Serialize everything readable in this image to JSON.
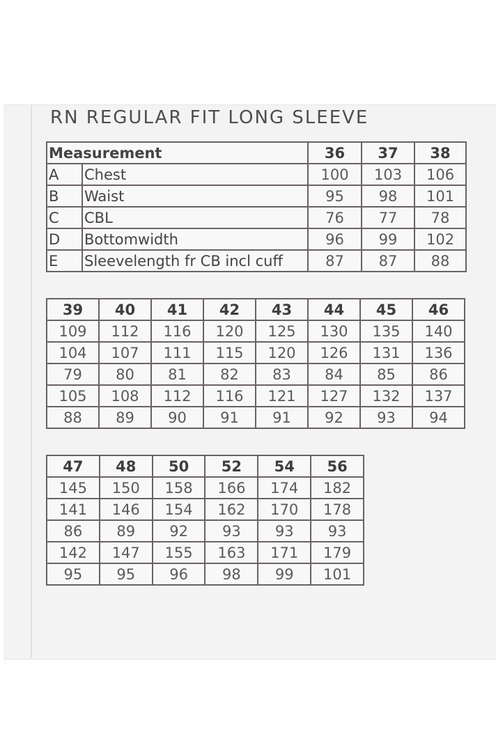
{
  "title": "RN REGULAR FIT LONG SLEEVE",
  "header_label": "Measurement",
  "measurements": [
    {
      "code": "A",
      "name": "Chest"
    },
    {
      "code": "B",
      "name": "Waist"
    },
    {
      "code": "C",
      "name": "CBL"
    },
    {
      "code": "D",
      "name": "Bottomwidth"
    },
    {
      "code": "E",
      "name": "Sleevelength fr CB incl cuff"
    }
  ],
  "tables": [
    {
      "sizes": [
        "36",
        "37",
        "38"
      ],
      "rows": [
        [
          "100",
          "103",
          "106"
        ],
        [
          "95",
          "98",
          "101"
        ],
        [
          "76",
          "77",
          "78"
        ],
        [
          "96",
          "99",
          "102"
        ],
        [
          "87",
          "87",
          "88"
        ]
      ]
    },
    {
      "sizes": [
        "39",
        "40",
        "41",
        "42",
        "43",
        "44",
        "45",
        "46"
      ],
      "rows": [
        [
          "109",
          "112",
          "116",
          "120",
          "125",
          "130",
          "135",
          "140"
        ],
        [
          "104",
          "107",
          "111",
          "115",
          "120",
          "126",
          "131",
          "136"
        ],
        [
          "79",
          "80",
          "81",
          "82",
          "83",
          "84",
          "85",
          "86"
        ],
        [
          "105",
          "108",
          "112",
          "116",
          "121",
          "127",
          "132",
          "137"
        ],
        [
          "88",
          "89",
          "90",
          "91",
          "91",
          "92",
          "93",
          "94"
        ]
      ]
    },
    {
      "sizes": [
        "47",
        "48",
        "50",
        "52",
        "54",
        "56"
      ],
      "rows": [
        [
          "145",
          "150",
          "158",
          "166",
          "174",
          "182"
        ],
        [
          "141",
          "146",
          "154",
          "162",
          "170",
          "178"
        ],
        [
          "86",
          "89",
          "92",
          "93",
          "93",
          "93"
        ],
        [
          "142",
          "147",
          "155",
          "163",
          "171",
          "179"
        ],
        [
          "95",
          "95",
          "96",
          "98",
          "99",
          "101"
        ]
      ]
    }
  ]
}
